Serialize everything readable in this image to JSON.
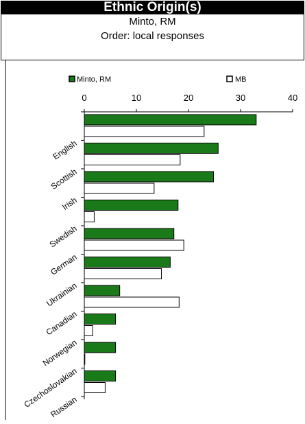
{
  "header": {
    "title": "Ethnic Origin(s)",
    "subtitle": "Minto, RM",
    "order_note": "Order: local responses"
  },
  "chart_data": {
    "type": "bar",
    "orientation": "horizontal",
    "categories": [
      "English",
      "Scottish",
      "Irish",
      "Swedish",
      "German",
      "Ukrainian",
      "Canadian",
      "Norwegian",
      "Czechoslovakian",
      "Russian"
    ],
    "series": [
      {
        "name": "Minto, RM",
        "color": "#1a7a1a",
        "values": [
          33,
          25.7,
          24.8,
          18,
          17.2,
          16.5,
          6.8,
          6,
          6,
          6
        ]
      },
      {
        "name": "MB",
        "color": "#ffffff",
        "values": [
          23,
          18.4,
          13.4,
          1.9,
          19.1,
          14.8,
          18.2,
          1.6,
          0.1,
          4
        ]
      }
    ],
    "xlim": [
      0,
      40
    ],
    "xticks": [
      0,
      10,
      20,
      30,
      40
    ],
    "axis_position": "top",
    "grid": false,
    "legend_position": "top"
  }
}
